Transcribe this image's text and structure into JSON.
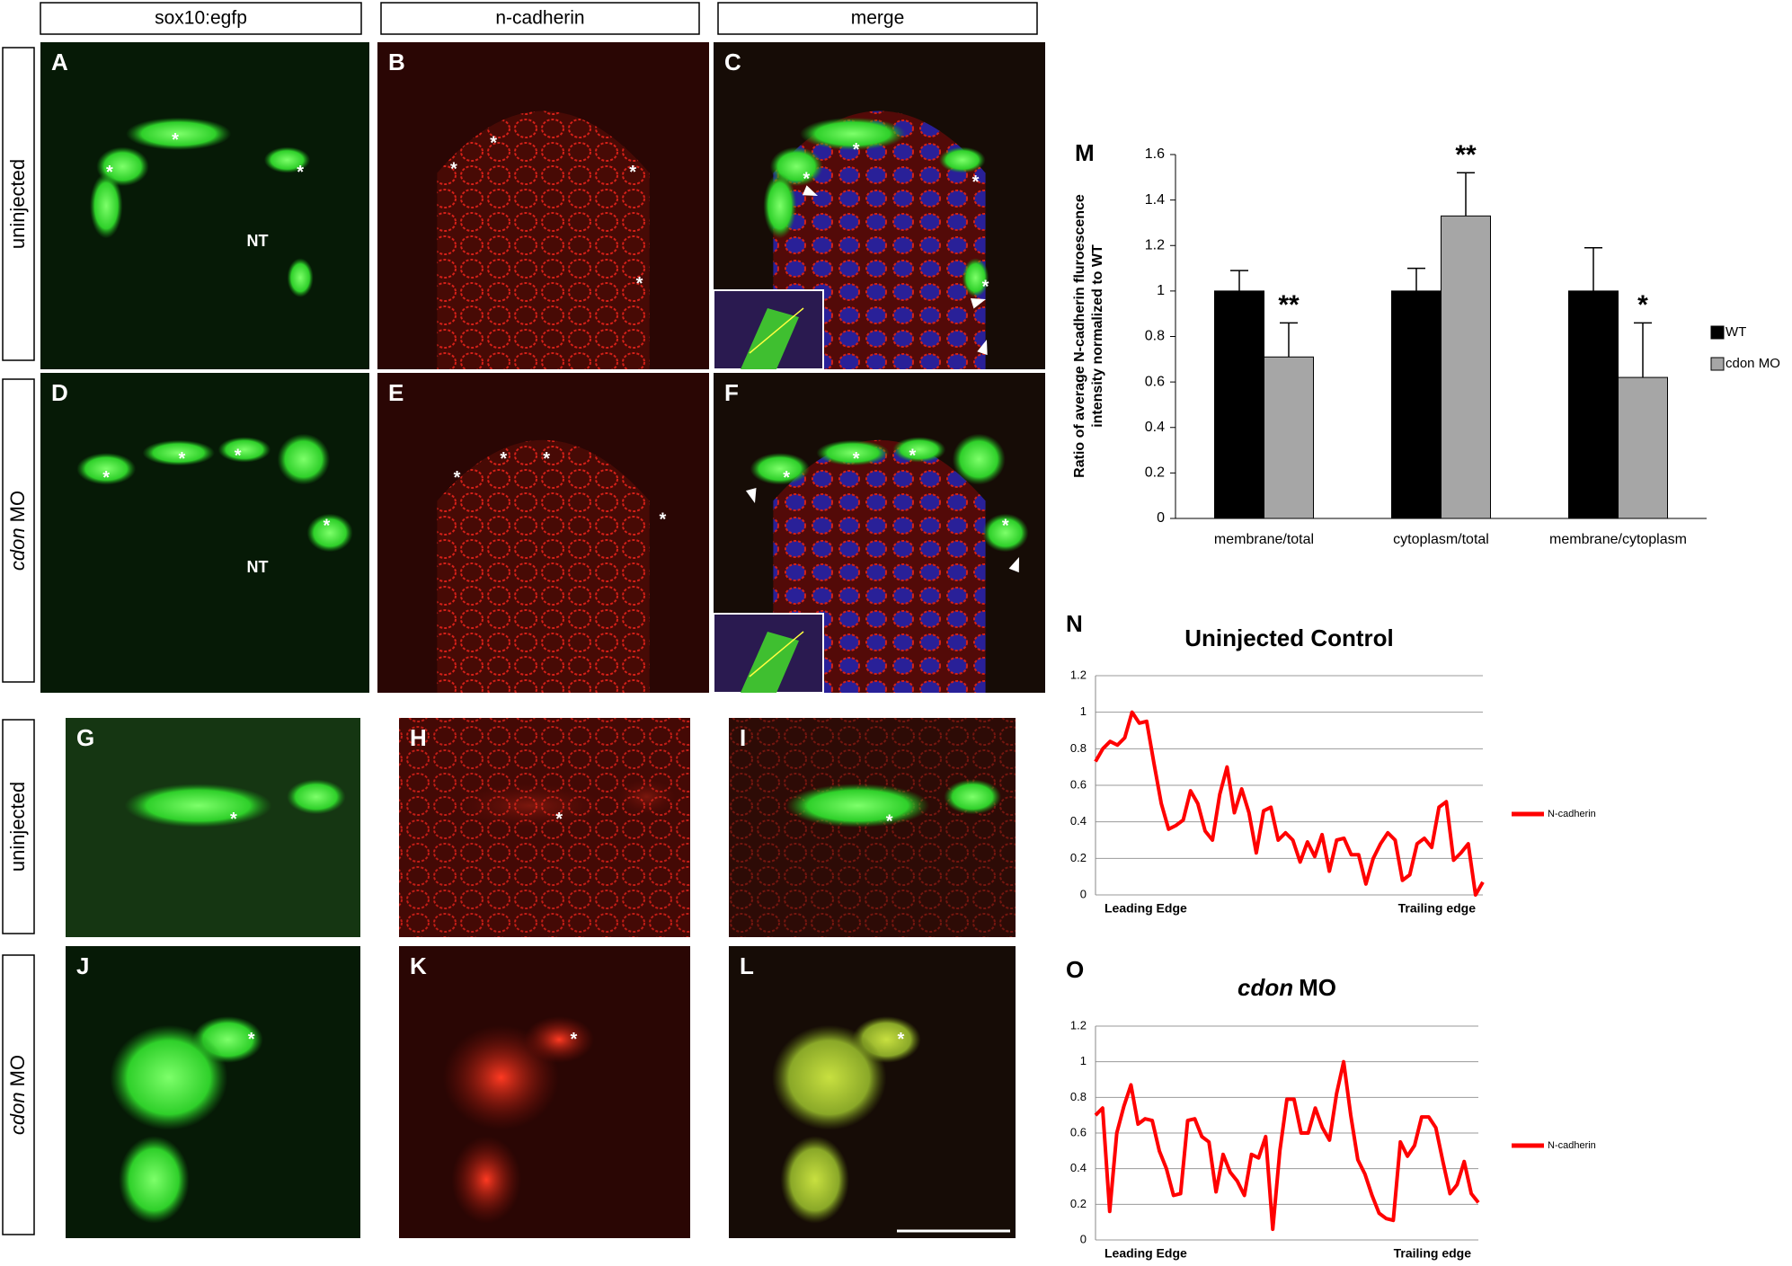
{
  "columns": [
    "sox10:egfp",
    "n-cadherin",
    "merge"
  ],
  "rows": [
    [
      {
        "text": "uninjected"
      }
    ],
    [
      {
        "text": "cdon",
        "italic": true
      },
      {
        "text": "MO"
      }
    ],
    [
      {
        "text": "uninjected"
      }
    ],
    [
      {
        "text": "cdon",
        "italic": true
      },
      {
        "text": "MO"
      }
    ]
  ],
  "panels": [
    {
      "letter": "A",
      "note": "NT"
    },
    {
      "letter": "B"
    },
    {
      "letter": "C"
    },
    {
      "letter": "D",
      "note": "NT"
    },
    {
      "letter": "E"
    },
    {
      "letter": "F"
    },
    {
      "letter": "G"
    },
    {
      "letter": "H"
    },
    {
      "letter": "I"
    },
    {
      "letter": "J"
    },
    {
      "letter": "K"
    },
    {
      "letter": "L"
    }
  ],
  "marker": "*",
  "chart_data": [
    {
      "type": "bar",
      "label": "M",
      "ylabel": "Ratio of average N-cadherin fluroescence intensity normalized to WT",
      "categories": [
        "membrane/total",
        "cytoplasm/total",
        "membrane/cytoplasm"
      ],
      "series": [
        {
          "name": "WT",
          "color": "#000000",
          "values": [
            1,
            1,
            1
          ],
          "errors": [
            0.09,
            0.1,
            0.19
          ]
        },
        {
          "name": "cdon MO",
          "color": "#a6a6a6",
          "values": [
            0.71,
            1.33,
            0.62
          ],
          "errors": [
            0.15,
            0.19,
            0.24
          ],
          "annotations": [
            "**",
            "**",
            "*"
          ]
        }
      ],
      "ylim": [
        0,
        1.6
      ],
      "yticks": [
        0,
        0.2,
        0.4,
        0.6,
        0.8,
        1,
        1.2,
        1.4,
        1.6
      ],
      "legend": "right"
    },
    {
      "type": "line",
      "label": "N",
      "title_parts": [
        {
          "text": "Uninjected Control"
        }
      ],
      "x_labels": [
        "Leading Edge",
        "Trailing edge"
      ],
      "series": [
        {
          "name": "N-cadherin",
          "color": "#ff0000",
          "values": [
            0.73,
            0.8,
            0.84,
            0.82,
            0.86,
            1.0,
            0.94,
            0.95,
            0.72,
            0.5,
            0.36,
            0.38,
            0.41,
            0.57,
            0.5,
            0.35,
            0.3,
            0.55,
            0.7,
            0.45,
            0.58,
            0.45,
            0.23,
            0.46,
            0.48,
            0.3,
            0.34,
            0.3,
            0.18,
            0.29,
            0.21,
            0.33,
            0.13,
            0.3,
            0.31,
            0.22,
            0.22,
            0.06,
            0.2,
            0.28,
            0.34,
            0.3,
            0.08,
            0.11,
            0.28,
            0.31,
            0.26,
            0.48,
            0.51,
            0.19,
            0.23,
            0.28,
            0.0,
            0.07
          ]
        }
      ],
      "ylim": [
        0,
        1.2
      ],
      "yticks": [
        0,
        0.2,
        0.4,
        0.6,
        0.8,
        1,
        1.2
      ],
      "grid": true,
      "legend": "right"
    },
    {
      "type": "line",
      "label": "O",
      "title_parts": [
        {
          "text": "cdon",
          "italic": true
        },
        {
          "text": "MO"
        }
      ],
      "x_labels": [
        "Leading Edge",
        "Trailing edge"
      ],
      "series": [
        {
          "name": "N-cadherin",
          "color": "#ff0000",
          "values": [
            0.7,
            0.74,
            0.16,
            0.6,
            0.75,
            0.87,
            0.65,
            0.68,
            0.67,
            0.5,
            0.4,
            0.25,
            0.26,
            0.67,
            0.68,
            0.58,
            0.55,
            0.27,
            0.48,
            0.38,
            0.33,
            0.25,
            0.48,
            0.46,
            0.58,
            0.06,
            0.5,
            0.79,
            0.79,
            0.6,
            0.6,
            0.74,
            0.63,
            0.56,
            0.82,
            1.0,
            0.7,
            0.45,
            0.37,
            0.25,
            0.15,
            0.12,
            0.11,
            0.55,
            0.47,
            0.53,
            0.69,
            0.69,
            0.63,
            0.44,
            0.26,
            0.31,
            0.44,
            0.26,
            0.21
          ]
        }
      ],
      "ylim": [
        0,
        1.2
      ],
      "yticks": [
        0,
        0.2,
        0.4,
        0.6,
        0.8,
        1,
        1.2
      ],
      "grid": true,
      "legend": "right"
    }
  ]
}
